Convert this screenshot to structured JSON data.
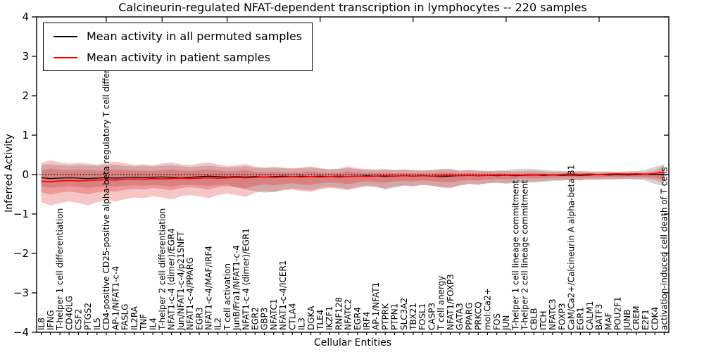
{
  "title": "Calcineurin-regulated NFAT-dependent transcription in lymphocytes -- 220 samples",
  "legend": [
    {
      "label": "Mean activity in all permuted samples",
      "color": "#000000"
    },
    {
      "label": "Mean activity in patient samples",
      "color": "#ff0000"
    }
  ],
  "chart_data": {
    "type": "line",
    "title": "Calcineurin-regulated NFAT-dependent transcription in lymphocytes -- 220 samples",
    "xlabel": "Cellular Entities",
    "ylabel": "Inferred Activity",
    "ylim": [
      -4,
      4
    ],
    "yticks": [
      4,
      3,
      2,
      1,
      0,
      -1,
      -2,
      -3,
      -4
    ],
    "zero_line": 0,
    "grid": false,
    "legend_position": "upper left",
    "top_tick_indices": [
      7,
      13,
      20,
      30,
      40,
      50,
      60
    ],
    "categories": [
      "IL8",
      "IFNG",
      "T-helper 1 cell differentiation",
      "CD40LG",
      "CSF2",
      "PTGS2",
      "IL5",
      "CD4-positive CD25-positive alpha-beta regulatory T cell differentiation",
      "AP-1/NFAT1-c-4",
      "FASLG",
      "IL2RA",
      "TNF",
      "IL4",
      "T-helper 2 cell differentiation",
      "NFAT1-c-4 (dimer)/EGR4",
      "Jun/NFAT1-c-4/p21SNFT",
      "NFAT1-c-4/PPARG",
      "EGR3",
      "NFAT1-c-4/MAF/IRF4",
      "IL2",
      "T cell activation",
      "JunB/Fra1/NFAT1-c-4",
      "NFAT1-c-4 (dimer)/EGR1",
      "EGR2",
      "GBP3",
      "NFATC1",
      "NFAT1-c-4/ICER1",
      "CTLA4",
      "IL3",
      "DGKA",
      "TLE4",
      "IKZF1",
      "RNF128",
      "NFATC2",
      "EGR4",
      "IRF4",
      "AP-1/NFAT1",
      "PTPRK",
      "PTPN1",
      "SLC3A2",
      "TBX21",
      "FOSL1",
      "CASP3",
      "T cell anergy",
      "NFAT1/FOXP3",
      "GATA3",
      "PPARG",
      "PRKCQ",
      "mol:Ca2+",
      "FOS",
      "JUN",
      "T-helper 1 cell lineage commitment",
      "T-helper 2 cell lineage commitment",
      "CBLB",
      "ITCH",
      "NFATC3",
      "FOXP3",
      "CaM/Ca2+/Calcineurin A alpha-beta B1",
      "EGR1",
      "CALM1",
      "BATF3",
      "MAF",
      "POU2F1",
      "JUNB",
      "CREM",
      "E2F1",
      "CDK4",
      "activation-induced cell death of T cells"
    ],
    "series": [
      {
        "name": "Mean activity in all permuted samples",
        "color": "#000000",
        "width": 1.2,
        "values": [
          -0.08,
          -0.1,
          -0.09,
          -0.08,
          -0.09,
          -0.1,
          -0.09,
          -0.08,
          -0.09,
          -0.08,
          -0.07,
          -0.08,
          -0.07,
          -0.06,
          -0.07,
          -0.08,
          -0.07,
          -0.05,
          -0.04,
          -0.05,
          -0.06,
          -0.05,
          -0.06,
          -0.05,
          -0.06,
          -0.05,
          -0.04,
          -0.05,
          -0.04,
          -0.05,
          -0.04,
          -0.05,
          -0.06,
          -0.05,
          -0.04,
          -0.03,
          -0.04,
          -0.05,
          -0.04,
          -0.03,
          -0.04,
          -0.03,
          -0.04,
          -0.05,
          -0.04,
          -0.03,
          -0.02,
          -0.03,
          -0.02,
          -0.03,
          -0.02,
          -0.03,
          -0.02,
          -0.01,
          -0.02,
          -0.01,
          -0.02,
          -0.01,
          -0.02,
          -0.01,
          0.0,
          -0.01,
          0.0,
          -0.01,
          0.0,
          0.01,
          0.0,
          0.01
        ]
      },
      {
        "name": "Mean activity in patient samples",
        "color": "#ff0000",
        "width": 1.7,
        "values": [
          -0.17,
          -0.18,
          -0.16,
          -0.15,
          -0.16,
          -0.15,
          -0.14,
          -0.13,
          -0.14,
          -0.12,
          -0.11,
          -0.12,
          -0.1,
          -0.11,
          -0.1,
          -0.09,
          -0.1,
          -0.09,
          -0.08,
          -0.09,
          -0.08,
          -0.07,
          -0.08,
          -0.07,
          -0.06,
          -0.07,
          -0.06,
          -0.05,
          -0.06,
          -0.05,
          -0.06,
          -0.05,
          -0.04,
          -0.05,
          -0.04,
          -0.05,
          -0.04,
          -0.03,
          -0.04,
          -0.03,
          -0.04,
          -0.03,
          -0.04,
          -0.03,
          -0.02,
          -0.03,
          -0.02,
          -0.03,
          -0.02,
          -0.01,
          -0.02,
          -0.01,
          -0.02,
          -0.01,
          0.0,
          -0.01,
          0.0,
          0.01,
          0.0,
          0.01,
          0.0,
          0.01,
          0.02,
          0.01,
          0.02,
          0.01,
          0.03,
          0.06
        ]
      }
    ],
    "bands": [
      {
        "name": "permuted-samples-std-band",
        "color": "#808080",
        "opacity": 0.35,
        "upper": [
          0.25,
          0.26,
          0.24,
          0.23,
          0.24,
          0.23,
          0.22,
          0.24,
          0.25,
          0.22,
          0.21,
          0.22,
          0.2,
          0.22,
          0.24,
          0.21,
          0.19,
          0.21,
          0.23,
          0.2,
          0.18,
          0.19,
          0.21,
          0.17,
          0.16,
          0.17,
          0.16,
          0.15,
          0.16,
          0.18,
          0.15,
          0.13,
          0.14,
          0.17,
          0.14,
          0.13,
          0.12,
          0.13,
          0.11,
          0.12,
          0.11,
          0.1,
          0.11,
          0.13,
          0.13,
          0.1,
          0.11,
          0.1,
          0.09,
          0.1,
          0.12,
          0.14,
          0.15,
          0.14,
          0.12,
          0.1,
          0.09,
          0.08,
          0.09,
          0.08,
          0.08,
          0.08,
          0.07,
          0.08,
          0.09,
          0.12,
          0.2,
          0.26
        ],
        "lower": [
          -0.3,
          -0.33,
          -0.31,
          -0.29,
          -0.31,
          -0.34,
          -0.31,
          -0.29,
          -0.3,
          -0.28,
          -0.27,
          -0.28,
          -0.26,
          -0.28,
          -0.3,
          -0.27,
          -0.26,
          -0.27,
          -0.29,
          -0.26,
          -0.25,
          -0.33,
          -0.38,
          -0.42,
          -0.46,
          -0.43,
          -0.38,
          -0.35,
          -0.38,
          -0.4,
          -0.34,
          -0.31,
          -0.33,
          -0.36,
          -0.31,
          -0.28,
          -0.3,
          -0.38,
          -0.33,
          -0.27,
          -0.29,
          -0.26,
          -0.28,
          -0.31,
          -0.32,
          -0.27,
          -0.24,
          -0.25,
          -0.22,
          -0.21,
          -0.23,
          -0.22,
          -0.21,
          -0.2,
          -0.19,
          -0.16,
          -0.15,
          -0.14,
          -0.15,
          -0.13,
          -0.13,
          -0.12,
          -0.12,
          -0.11,
          -0.12,
          -0.15,
          -0.24,
          -0.29
        ]
      },
      {
        "name": "patient-samples-outer-band",
        "color": "#e03030",
        "opacity": 0.28,
        "upper": [
          0.3,
          0.36,
          0.31,
          0.28,
          0.3,
          0.28,
          0.25,
          0.3,
          0.33,
          0.28,
          0.25,
          0.26,
          0.24,
          0.28,
          0.31,
          0.26,
          0.24,
          0.28,
          0.31,
          0.26,
          0.22,
          0.24,
          0.27,
          0.2,
          0.18,
          0.2,
          0.18,
          0.16,
          0.18,
          0.21,
          0.16,
          0.14,
          0.15,
          0.21,
          0.16,
          0.14,
          0.13,
          0.14,
          0.12,
          0.13,
          0.12,
          0.11,
          0.12,
          0.14,
          0.15,
          0.1,
          0.12,
          0.1,
          0.09,
          0.1,
          0.09,
          0.08,
          0.09,
          0.1,
          0.08,
          0.07,
          0.08,
          0.07,
          0.08,
          0.07,
          0.06,
          0.07,
          0.06,
          0.07,
          0.06,
          0.07,
          0.1,
          0.24
        ],
        "lower": [
          -0.7,
          -0.78,
          -0.72,
          -0.68,
          -0.72,
          -0.78,
          -0.7,
          -0.65,
          -0.68,
          -0.62,
          -0.58,
          -0.6,
          -0.55,
          -0.58,
          -0.63,
          -0.55,
          -0.52,
          -0.55,
          -0.6,
          -0.52,
          -0.48,
          -0.52,
          -0.57,
          -0.46,
          -0.42,
          -0.45,
          -0.4,
          -0.38,
          -0.42,
          -0.44,
          -0.38,
          -0.34,
          -0.36,
          -0.4,
          -0.34,
          -0.3,
          -0.32,
          -0.35,
          -0.3,
          -0.28,
          -0.3,
          -0.26,
          -0.28,
          -0.33,
          -0.35,
          -0.28,
          -0.24,
          -0.26,
          -0.22,
          -0.2,
          -0.22,
          -0.18,
          -0.16,
          -0.18,
          -0.16,
          -0.14,
          -0.15,
          -0.13,
          -0.14,
          -0.12,
          -0.13,
          -0.11,
          -0.12,
          -0.1,
          -0.11,
          -0.1,
          -0.14,
          -0.22
        ]
      },
      {
        "name": "patient-samples-inner-band",
        "color": "#e03030",
        "opacity": 0.3,
        "upper": [
          0.12,
          0.15,
          0.13,
          0.11,
          0.12,
          0.11,
          0.1,
          0.12,
          0.14,
          0.11,
          0.1,
          0.1,
          0.09,
          0.11,
          0.13,
          0.1,
          0.09,
          0.11,
          0.13,
          0.1,
          0.08,
          0.09,
          0.11,
          0.07,
          0.06,
          0.07,
          0.06,
          0.05,
          0.06,
          0.08,
          0.05,
          0.04,
          0.05,
          0.08,
          0.05,
          0.04,
          0.04,
          0.04,
          0.03,
          0.04,
          0.03,
          0.03,
          0.03,
          0.05,
          0.05,
          0.03,
          0.04,
          0.03,
          0.03,
          0.03,
          0.03,
          0.02,
          0.03,
          0.04,
          0.03,
          0.02,
          0.03,
          0.03,
          0.03,
          0.03,
          0.02,
          0.03,
          0.03,
          0.03,
          0.03,
          0.03,
          0.05,
          0.13
        ],
        "lower": [
          -0.45,
          -0.5,
          -0.46,
          -0.43,
          -0.46,
          -0.5,
          -0.45,
          -0.41,
          -0.43,
          -0.39,
          -0.36,
          -0.38,
          -0.34,
          -0.36,
          -0.4,
          -0.34,
          -0.32,
          -0.34,
          -0.38,
          -0.32,
          -0.29,
          -0.32,
          -0.35,
          -0.28,
          -0.25,
          -0.27,
          -0.24,
          -0.22,
          -0.25,
          -0.26,
          -0.22,
          -0.2,
          -0.21,
          -0.24,
          -0.2,
          -0.17,
          -0.19,
          -0.21,
          -0.17,
          -0.16,
          -0.17,
          -0.15,
          -0.16,
          -0.19,
          -0.2,
          -0.16,
          -0.14,
          -0.15,
          -0.12,
          -0.11,
          -0.12,
          -0.1,
          -0.09,
          -0.1,
          -0.09,
          -0.08,
          -0.08,
          -0.07,
          -0.08,
          -0.07,
          -0.07,
          -0.06,
          -0.07,
          -0.06,
          -0.06,
          -0.06,
          -0.08,
          -0.13
        ]
      }
    ]
  }
}
